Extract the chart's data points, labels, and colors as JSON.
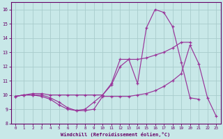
{
  "background_color": "#c8e8e8",
  "grid_color": "#a8cccc",
  "line_color": "#993399",
  "xlabel": "Windchill (Refroidissement éolien,°C)",
  "xlim": [
    -0.5,
    23.5
  ],
  "ylim": [
    8.0,
    16.5
  ],
  "xticks": [
    0,
    1,
    2,
    3,
    4,
    5,
    6,
    7,
    8,
    9,
    10,
    11,
    12,
    13,
    14,
    15,
    16,
    17,
    18,
    19,
    20,
    21,
    22,
    23
  ],
  "yticks": [
    8,
    9,
    10,
    11,
    12,
    13,
    14,
    15,
    16
  ],
  "line1_xy": [
    [
      0,
      9.9
    ],
    [
      1,
      10.0
    ],
    [
      2,
      10.0
    ],
    [
      3,
      10.0
    ],
    [
      4,
      9.8
    ],
    [
      5,
      9.5
    ],
    [
      6,
      9.1
    ],
    [
      7,
      8.9
    ],
    [
      8,
      9.0
    ],
    [
      9,
      9.5
    ],
    [
      10,
      10.0
    ],
    [
      11,
      10.8
    ],
    [
      12,
      12.5
    ],
    [
      13,
      12.5
    ],
    [
      14,
      10.8
    ],
    [
      15,
      14.7
    ],
    [
      16,
      16.0
    ],
    [
      17,
      15.8
    ],
    [
      18,
      14.8
    ],
    [
      19,
      12.3
    ],
    [
      20,
      9.8
    ],
    [
      21,
      9.7
    ]
  ],
  "line2_xy": [
    [
      0,
      9.9
    ],
    [
      1,
      10.0
    ],
    [
      2,
      10.1
    ],
    [
      3,
      10.1
    ],
    [
      4,
      10.0
    ],
    [
      5,
      10.0
    ],
    [
      6,
      10.0
    ],
    [
      7,
      10.0
    ],
    [
      8,
      10.0
    ],
    [
      9,
      10.0
    ],
    [
      10,
      10.0
    ],
    [
      11,
      10.7
    ],
    [
      12,
      12.0
    ],
    [
      13,
      12.5
    ],
    [
      14,
      12.5
    ],
    [
      15,
      12.6
    ],
    [
      16,
      12.8
    ],
    [
      17,
      13.0
    ],
    [
      18,
      13.3
    ],
    [
      19,
      13.7
    ],
    [
      20,
      13.7
    ]
  ],
  "line3_xy": [
    [
      0,
      9.9
    ],
    [
      1,
      10.0
    ],
    [
      2,
      10.0
    ],
    [
      3,
      9.9
    ],
    [
      4,
      9.7
    ],
    [
      5,
      9.3
    ],
    [
      6,
      9.0
    ],
    [
      7,
      8.9
    ],
    [
      8,
      8.9
    ],
    [
      9,
      9.0
    ],
    [
      10,
      9.9
    ],
    [
      11,
      9.9
    ],
    [
      12,
      9.9
    ],
    [
      13,
      9.9
    ],
    [
      14,
      10.0
    ],
    [
      15,
      10.1
    ],
    [
      16,
      10.3
    ],
    [
      17,
      10.6
    ],
    [
      18,
      11.0
    ],
    [
      19,
      11.5
    ],
    [
      20,
      13.5
    ],
    [
      21,
      12.2
    ],
    [
      22,
      9.8
    ],
    [
      23,
      8.5
    ]
  ]
}
